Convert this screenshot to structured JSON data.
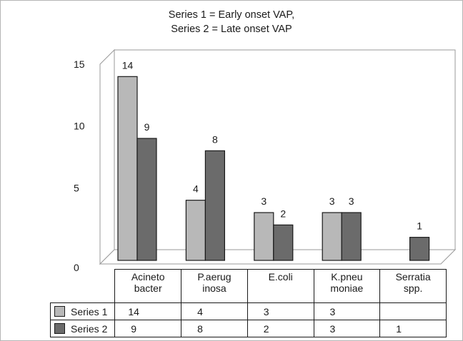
{
  "chart_data": {
    "type": "bar",
    "title_lines": [
      "Series 1 = Early onset VAP,",
      "Series 2 = Late onset VAP"
    ],
    "categories": [
      [
        "Acineto",
        "bacter"
      ],
      [
        "P.aerug",
        "inosa"
      ],
      [
        "E.coli"
      ],
      [
        "K.pneu",
        "moniae"
      ],
      [
        "Serratia",
        "spp."
      ]
    ],
    "series": [
      {
        "name": "Series 1",
        "values": [
          14,
          4,
          3,
          3,
          null
        ],
        "labels": [
          "14",
          "4",
          "3",
          "3",
          ""
        ]
      },
      {
        "name": "Series 2",
        "values": [
          9,
          8,
          2,
          3,
          1
        ],
        "labels": [
          "9",
          "8",
          "2",
          "3",
          "1"
        ]
      }
    ],
    "yticks": [
      "15",
      "10",
      "5",
      "0"
    ],
    "ylim": [
      0,
      15
    ],
    "grid": false,
    "legend": "data-table",
    "colors": {
      "series1": "#b8b8b8",
      "series2": "#6b6b6b",
      "stroke": "#1a1a1a",
      "wall": "#9a9a9a"
    }
  }
}
